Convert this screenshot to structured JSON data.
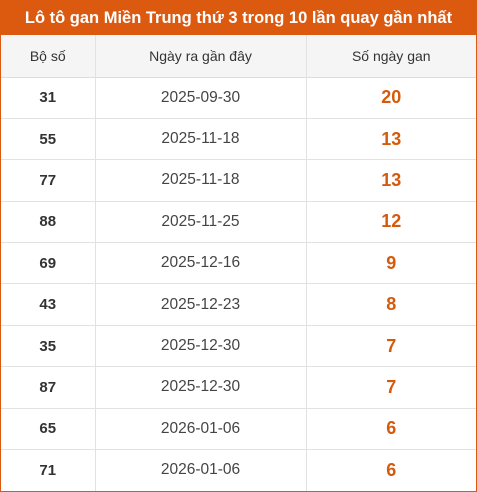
{
  "title": "Lô tô gan Miền Trung thứ 3 trong 10 lần quay gần nhất",
  "accent_color": "#dc5a10",
  "value_color": "#d55a0c",
  "table": {
    "headers": [
      "Bộ số",
      "Ngày ra gần đây",
      "Số ngày gan"
    ],
    "rows": [
      {
        "number": "31",
        "date": "2025-09-30",
        "days": "20"
      },
      {
        "number": "55",
        "date": "2025-11-18",
        "days": "13"
      },
      {
        "number": "77",
        "date": "2025-11-18",
        "days": "13"
      },
      {
        "number": "88",
        "date": "2025-11-25",
        "days": "12"
      },
      {
        "number": "69",
        "date": "2025-12-16",
        "days": "9"
      },
      {
        "number": "43",
        "date": "2025-12-23",
        "days": "8"
      },
      {
        "number": "35",
        "date": "2025-12-30",
        "days": "7"
      },
      {
        "number": "87",
        "date": "2025-12-30",
        "days": "7"
      },
      {
        "number": "65",
        "date": "2026-01-06",
        "days": "6"
      },
      {
        "number": "71",
        "date": "2026-01-06",
        "days": "6"
      }
    ]
  }
}
